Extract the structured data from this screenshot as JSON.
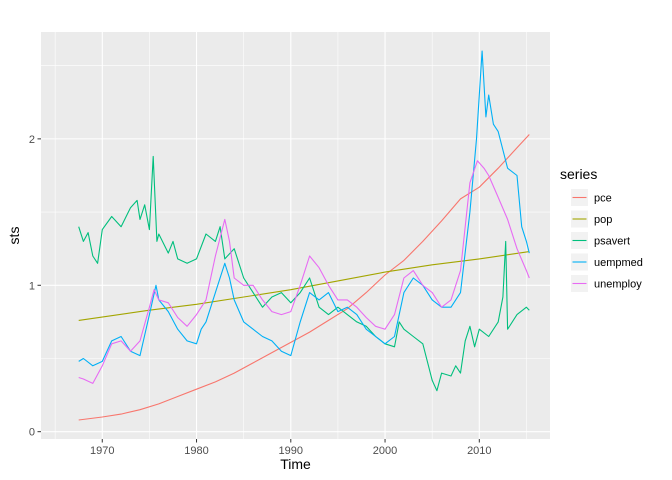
{
  "chart_data": {
    "type": "line",
    "title": "",
    "xlabel": "Time",
    "ylabel": "sts",
    "xlim": [
      1963.5,
      2017.5
    ],
    "ylim": [
      -0.05,
      2.73
    ],
    "x_ticks": [
      1970,
      1980,
      1990,
      2000,
      2010
    ],
    "x_tick_labels": [
      "1970",
      "1980",
      "1990",
      "2000",
      "2010"
    ],
    "y_ticks": [
      0,
      1,
      2
    ],
    "y_tick_labels": [
      "0",
      "1",
      "2"
    ],
    "grid": true,
    "legend": {
      "title": "series",
      "position": "right"
    },
    "series": [
      {
        "name": "pce",
        "color": "#F8766D",
        "points": [
          [
            1967.5,
            0.08
          ],
          [
            1970,
            0.1
          ],
          [
            1972,
            0.12
          ],
          [
            1974,
            0.15
          ],
          [
            1976,
            0.19
          ],
          [
            1978,
            0.24
          ],
          [
            1980,
            0.29
          ],
          [
            1982,
            0.34
          ],
          [
            1984,
            0.4
          ],
          [
            1986,
            0.47
          ],
          [
            1988,
            0.54
          ],
          [
            1990,
            0.61
          ],
          [
            1992,
            0.68
          ],
          [
            1994,
            0.76
          ],
          [
            1996,
            0.84
          ],
          [
            1998,
            0.95
          ],
          [
            2000,
            1.07
          ],
          [
            2002,
            1.17
          ],
          [
            2004,
            1.3
          ],
          [
            2006,
            1.44
          ],
          [
            2008,
            1.59
          ],
          [
            2009,
            1.63
          ],
          [
            2010,
            1.67
          ],
          [
            2012,
            1.8
          ],
          [
            2014,
            1.94
          ],
          [
            2015.3,
            2.03
          ]
        ]
      },
      {
        "name": "pop",
        "color": "#A3A500",
        "points": [
          [
            1967.5,
            0.76
          ],
          [
            1975,
            0.83
          ],
          [
            1980,
            0.87
          ],
          [
            1985,
            0.92
          ],
          [
            1990,
            0.97
          ],
          [
            1995,
            1.03
          ],
          [
            2000,
            1.09
          ],
          [
            2005,
            1.14
          ],
          [
            2010,
            1.18
          ],
          [
            2015.3,
            1.23
          ]
        ]
      },
      {
        "name": "psavert",
        "color": "#00BF7D",
        "points": [
          [
            1967.5,
            1.4
          ],
          [
            1968,
            1.3
          ],
          [
            1968.5,
            1.36
          ],
          [
            1969,
            1.2
          ],
          [
            1969.5,
            1.15
          ],
          [
            1970,
            1.38
          ],
          [
            1971,
            1.47
          ],
          [
            1972,
            1.4
          ],
          [
            1973,
            1.53
          ],
          [
            1973.7,
            1.58
          ],
          [
            1974,
            1.45
          ],
          [
            1974.5,
            1.55
          ],
          [
            1975,
            1.38
          ],
          [
            1975.4,
            1.88
          ],
          [
            1975.8,
            1.3
          ],
          [
            1976,
            1.35
          ],
          [
            1977,
            1.22
          ],
          [
            1977.5,
            1.3
          ],
          [
            1978,
            1.18
          ],
          [
            1979,
            1.15
          ],
          [
            1980,
            1.18
          ],
          [
            1981,
            1.35
          ],
          [
            1982,
            1.3
          ],
          [
            1982.5,
            1.4
          ],
          [
            1983,
            1.18
          ],
          [
            1984,
            1.25
          ],
          [
            1985,
            1.05
          ],
          [
            1986,
            0.95
          ],
          [
            1987,
            0.85
          ],
          [
            1988,
            0.92
          ],
          [
            1989,
            0.95
          ],
          [
            1990,
            0.88
          ],
          [
            1991,
            0.95
          ],
          [
            1992,
            1.05
          ],
          [
            1993,
            0.85
          ],
          [
            1994,
            0.8
          ],
          [
            1995,
            0.85
          ],
          [
            1996,
            0.8
          ],
          [
            1997,
            0.75
          ],
          [
            1998,
            0.72
          ],
          [
            1999,
            0.65
          ],
          [
            2000,
            0.6
          ],
          [
            2001,
            0.58
          ],
          [
            2001.5,
            0.75
          ],
          [
            2002,
            0.7
          ],
          [
            2003,
            0.65
          ],
          [
            2004,
            0.6
          ],
          [
            2005,
            0.35
          ],
          [
            2005.5,
            0.28
          ],
          [
            2006,
            0.4
          ],
          [
            2007,
            0.38
          ],
          [
            2007.5,
            0.45
          ],
          [
            2008,
            0.4
          ],
          [
            2008.5,
            0.62
          ],
          [
            2009,
            0.72
          ],
          [
            2009.5,
            0.58
          ],
          [
            2010,
            0.7
          ],
          [
            2011,
            0.65
          ],
          [
            2012,
            0.75
          ],
          [
            2012.5,
            0.92
          ],
          [
            2012.8,
            1.3
          ],
          [
            2013,
            0.7
          ],
          [
            2014,
            0.8
          ],
          [
            2015,
            0.85
          ],
          [
            2015.3,
            0.83
          ]
        ]
      },
      {
        "name": "uempmed",
        "color": "#00B0F6",
        "points": [
          [
            1967.5,
            0.48
          ],
          [
            1968,
            0.5
          ],
          [
            1969,
            0.45
          ],
          [
            1970,
            0.48
          ],
          [
            1971,
            0.62
          ],
          [
            1972,
            0.65
          ],
          [
            1973,
            0.55
          ],
          [
            1974,
            0.52
          ],
          [
            1975,
            0.8
          ],
          [
            1975.7,
            1.0
          ],
          [
            1976,
            0.9
          ],
          [
            1977,
            0.82
          ],
          [
            1978,
            0.7
          ],
          [
            1979,
            0.62
          ],
          [
            1980,
            0.6
          ],
          [
            1980.5,
            0.7
          ],
          [
            1981,
            0.75
          ],
          [
            1982,
            0.95
          ],
          [
            1983,
            1.15
          ],
          [
            1983.5,
            1.05
          ],
          [
            1984,
            0.9
          ],
          [
            1985,
            0.75
          ],
          [
            1986,
            0.7
          ],
          [
            1987,
            0.65
          ],
          [
            1988,
            0.62
          ],
          [
            1989,
            0.55
          ],
          [
            1990,
            0.52
          ],
          [
            1991,
            0.75
          ],
          [
            1992,
            0.95
          ],
          [
            1993,
            0.9
          ],
          [
            1994,
            0.95
          ],
          [
            1995,
            0.82
          ],
          [
            1996,
            0.85
          ],
          [
            1997,
            0.8
          ],
          [
            1998,
            0.7
          ],
          [
            1999,
            0.65
          ],
          [
            2000,
            0.6
          ],
          [
            2001,
            0.65
          ],
          [
            2002,
            0.95
          ],
          [
            2003,
            1.05
          ],
          [
            2004,
            1.0
          ],
          [
            2005,
            0.9
          ],
          [
            2006,
            0.85
          ],
          [
            2007,
            0.85
          ],
          [
            2008,
            0.95
          ],
          [
            2009,
            1.5
          ],
          [
            2009.7,
            2.0
          ],
          [
            2010.3,
            2.6
          ],
          [
            2010.7,
            2.15
          ],
          [
            2011,
            2.3
          ],
          [
            2011.5,
            2.1
          ],
          [
            2012,
            2.05
          ],
          [
            2013,
            1.8
          ],
          [
            2014,
            1.75
          ],
          [
            2014.5,
            1.4
          ],
          [
            2015,
            1.3
          ],
          [
            2015.3,
            1.22
          ]
        ]
      },
      {
        "name": "unemploy",
        "color": "#E76BF3",
        "points": [
          [
            1967.5,
            0.37
          ],
          [
            1968,
            0.36
          ],
          [
            1969,
            0.33
          ],
          [
            1970,
            0.45
          ],
          [
            1971,
            0.6
          ],
          [
            1972,
            0.62
          ],
          [
            1973,
            0.55
          ],
          [
            1974,
            0.62
          ],
          [
            1975,
            0.85
          ],
          [
            1975.5,
            0.97
          ],
          [
            1976,
            0.9
          ],
          [
            1977,
            0.88
          ],
          [
            1978,
            0.78
          ],
          [
            1979,
            0.72
          ],
          [
            1980,
            0.8
          ],
          [
            1981,
            0.9
          ],
          [
            1982,
            1.2
          ],
          [
            1983,
            1.45
          ],
          [
            1983.5,
            1.3
          ],
          [
            1984,
            1.05
          ],
          [
            1985,
            1.0
          ],
          [
            1986,
            1.0
          ],
          [
            1987,
            0.9
          ],
          [
            1988,
            0.82
          ],
          [
            1989,
            0.8
          ],
          [
            1990,
            0.82
          ],
          [
            1991,
            1.0
          ],
          [
            1992,
            1.2
          ],
          [
            1993,
            1.12
          ],
          [
            1994,
            1.0
          ],
          [
            1995,
            0.9
          ],
          [
            1996,
            0.9
          ],
          [
            1997,
            0.85
          ],
          [
            1998,
            0.78
          ],
          [
            1999,
            0.72
          ],
          [
            2000,
            0.7
          ],
          [
            2001,
            0.8
          ],
          [
            2002,
            1.05
          ],
          [
            2003,
            1.1
          ],
          [
            2004,
            1.0
          ],
          [
            2005,
            0.95
          ],
          [
            2006,
            0.85
          ],
          [
            2007,
            0.9
          ],
          [
            2008,
            1.1
          ],
          [
            2009,
            1.7
          ],
          [
            2009.8,
            1.85
          ],
          [
            2010.5,
            1.8
          ],
          [
            2011,
            1.75
          ],
          [
            2012,
            1.6
          ],
          [
            2013,
            1.45
          ],
          [
            2014,
            1.25
          ],
          [
            2015,
            1.1
          ],
          [
            2015.3,
            1.05
          ]
        ]
      }
    ]
  }
}
